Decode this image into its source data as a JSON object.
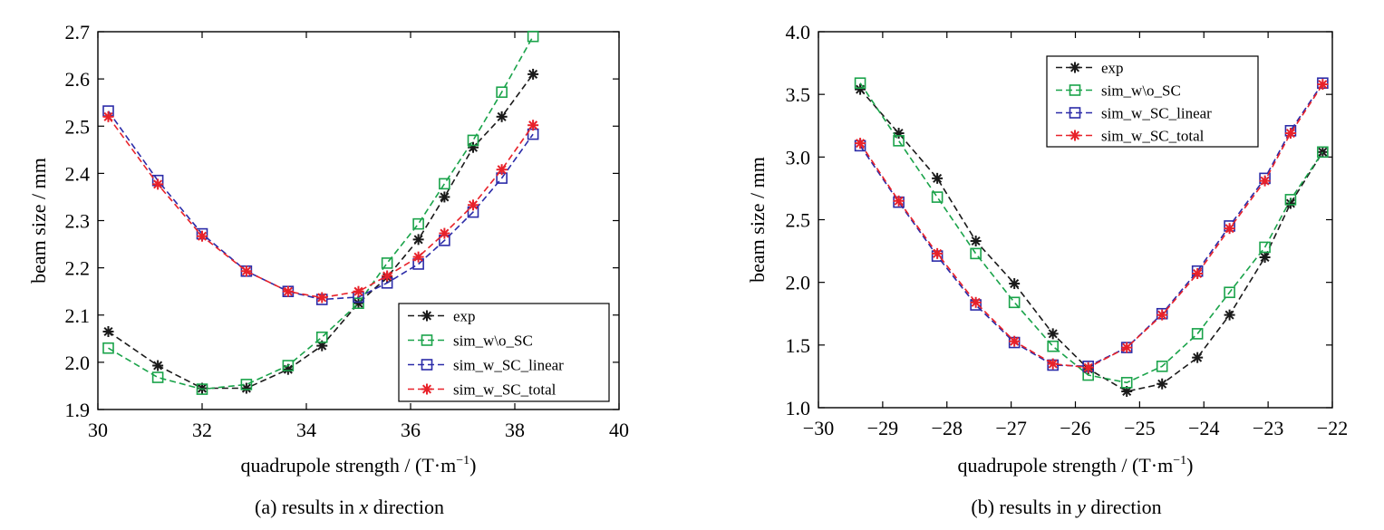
{
  "chart_data": [
    {
      "type": "line",
      "caption_prefix": "(a) results in ",
      "caption_var": "x",
      "caption_suffix": " direction",
      "xlabel": "quadrupole strength / (T·m",
      "xlabel_sup": "−1",
      "xlabel_end": ")",
      "ylabel": "beam size / mm",
      "xlim": [
        30,
        40
      ],
      "ylim": [
        1.9,
        2.7
      ],
      "xticks": [
        "30",
        "32",
        "34",
        "36",
        "38",
        "40"
      ],
      "xtick_values": [
        30,
        32,
        34,
        36,
        38,
        40
      ],
      "yticks": [
        "1.9",
        "2.0",
        "2.1",
        "2.2",
        "2.3",
        "2.4",
        "2.5",
        "2.6",
        "2.7"
      ],
      "ytick_values": [
        1.9,
        2.0,
        2.1,
        2.2,
        2.3,
        2.4,
        2.5,
        2.6,
        2.7
      ],
      "x": [
        30.2,
        31.15,
        32.0,
        32.85,
        33.65,
        34.3,
        35.0,
        35.55,
        36.15,
        36.65,
        37.2,
        37.75,
        38.35
      ],
      "legend_position": "bottom-right",
      "series": [
        {
          "name": "exp",
          "color": "#1a1a1a",
          "marker": "star",
          "values": [
            2.065,
            1.993,
            1.945,
            1.945,
            1.985,
            2.035,
            2.125,
            2.18,
            2.26,
            2.35,
            2.455,
            2.52,
            2.61
          ]
        },
        {
          "name": "sim_w\\o_SC",
          "color": "#1aa34a",
          "marker": "square",
          "values": [
            2.03,
            1.968,
            1.943,
            1.953,
            1.993,
            2.053,
            2.125,
            2.21,
            2.293,
            2.378,
            2.47,
            2.572,
            2.69
          ]
        },
        {
          "name": "sim_w_SC_linear",
          "color": "#2b2ba8",
          "marker": "square",
          "values": [
            2.532,
            2.385,
            2.272,
            2.193,
            2.15,
            2.133,
            2.138,
            2.168,
            2.208,
            2.258,
            2.318,
            2.39,
            2.483
          ]
        },
        {
          "name": "sim_w_SC_total",
          "color": "#e8222a",
          "marker": "star",
          "values": [
            2.52,
            2.377,
            2.267,
            2.193,
            2.15,
            2.137,
            2.15,
            2.183,
            2.223,
            2.273,
            2.333,
            2.408,
            2.502
          ]
        }
      ]
    },
    {
      "type": "line",
      "caption_prefix": "(b) results in ",
      "caption_var": "y",
      "caption_suffix": " direction",
      "xlabel": "quadrupole strength / (T·m",
      "xlabel_sup": "−1",
      "xlabel_end": ")",
      "ylabel": "beam size / mm",
      "xlim": [
        -30,
        -22
      ],
      "ylim": [
        1.0,
        4.0
      ],
      "xticks": [
        "−30",
        "−29",
        "−28",
        "−27",
        "−26",
        "−25",
        "−24",
        "−23",
        "−22"
      ],
      "xtick_values": [
        -30,
        -29,
        -28,
        -27,
        -26,
        -25,
        -24,
        -23,
        -22
      ],
      "yticks": [
        "1.0",
        "1.5",
        "2.0",
        "2.5",
        "3.0",
        "3.5",
        "4.0"
      ],
      "ytick_values": [
        1.0,
        1.5,
        2.0,
        2.5,
        3.0,
        3.5,
        4.0
      ],
      "x": [
        -29.35,
        -28.75,
        -28.15,
        -27.55,
        -26.95,
        -26.35,
        -25.8,
        -25.2,
        -24.65,
        -24.1,
        -23.6,
        -23.05,
        -22.65,
        -22.15
      ],
      "legend_position": "top-center",
      "series": [
        {
          "name": "exp",
          "color": "#1a1a1a",
          "marker": "star",
          "values": [
            3.54,
            3.19,
            2.83,
            2.33,
            1.99,
            1.59,
            1.31,
            1.13,
            1.19,
            1.4,
            1.74,
            2.2,
            2.63,
            3.04
          ]
        },
        {
          "name": "sim_w\\o_SC",
          "color": "#1aa34a",
          "marker": "square",
          "values": [
            3.59,
            3.13,
            2.68,
            2.23,
            1.84,
            1.49,
            1.26,
            1.2,
            1.33,
            1.59,
            1.92,
            2.28,
            2.66,
            3.04
          ]
        },
        {
          "name": "sim_w_SC_linear",
          "color": "#2b2ba8",
          "marker": "square",
          "values": [
            3.09,
            2.64,
            2.21,
            1.82,
            1.52,
            1.34,
            1.33,
            1.48,
            1.75,
            2.09,
            2.45,
            2.83,
            3.21,
            3.59
          ]
        },
        {
          "name": "sim_w_SC_total",
          "color": "#e8222a",
          "marker": "star",
          "values": [
            3.11,
            2.65,
            2.23,
            1.84,
            1.53,
            1.35,
            1.32,
            1.48,
            1.74,
            2.07,
            2.43,
            2.81,
            3.19,
            3.58
          ]
        }
      ]
    }
  ]
}
